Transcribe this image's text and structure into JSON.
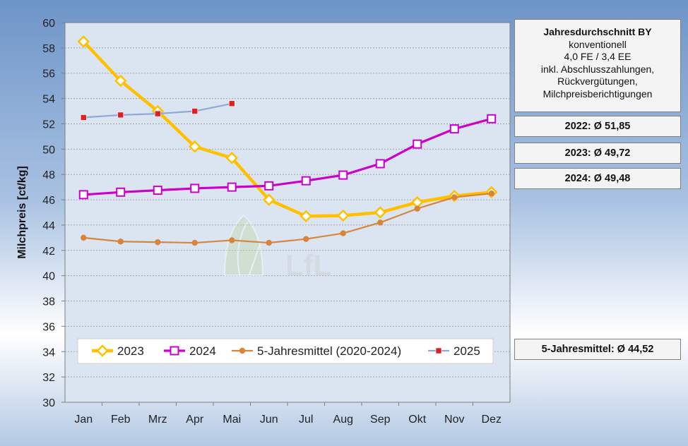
{
  "chart_data": {
    "type": "line",
    "ylabel": "Milchpreis [ct/kg]",
    "xlabel": "",
    "categories": [
      "Jan",
      "Feb",
      "Mrz",
      "Apr",
      "Mai",
      "Jun",
      "Jul",
      "Aug",
      "Sep",
      "Okt",
      "Nov",
      "Dez"
    ],
    "ylim": [
      30,
      60
    ],
    "yticks": [
      30,
      32,
      34,
      36,
      38,
      40,
      42,
      44,
      46,
      48,
      50,
      52,
      54,
      56,
      58,
      60
    ],
    "grid": "horizontal dashed",
    "legend": "bottom",
    "series": [
      {
        "name": "2023",
        "color": "#ffc000",
        "marker": "diamond",
        "values": [
          58.5,
          55.4,
          53.0,
          50.2,
          49.3,
          46.0,
          44.7,
          44.75,
          45.0,
          45.8,
          46.3,
          46.6
        ]
      },
      {
        "name": "2024",
        "color": "#cc00cc",
        "marker": "square",
        "values": [
          46.4,
          46.6,
          46.75,
          46.9,
          47.0,
          47.1,
          47.5,
          47.95,
          48.85,
          50.4,
          51.6,
          52.4
        ]
      },
      {
        "name": "5-Jahresmittel (2020-2024)",
        "color": "#d9843b",
        "marker": "circle",
        "values": [
          43.0,
          42.7,
          42.65,
          42.6,
          42.8,
          42.6,
          42.9,
          43.35,
          44.2,
          45.3,
          46.2,
          46.5
        ]
      },
      {
        "name": "2025",
        "color": "#8fa9d6",
        "marker": "red-square",
        "values": [
          52.5,
          52.7,
          52.8,
          53.0,
          53.6,
          null,
          null,
          null,
          null,
          null,
          null,
          null
        ]
      }
    ]
  },
  "info": {
    "title": "Jahresdurchschnitt BY",
    "lines": [
      "konventionell",
      "4,0 FE / 3,4 EE",
      "inkl. Abschlusszahlungen,",
      "Rückvergütungen,",
      "Milchpreisberichtigungen"
    ],
    "avg_2022": "2022: Ø 51,85",
    "avg_2023": "2023: Ø 49,72",
    "avg_2024": "2024: Ø 49,48",
    "avg_5j": "5-Jahresmittel: Ø 44,52"
  },
  "watermark": "LfL"
}
